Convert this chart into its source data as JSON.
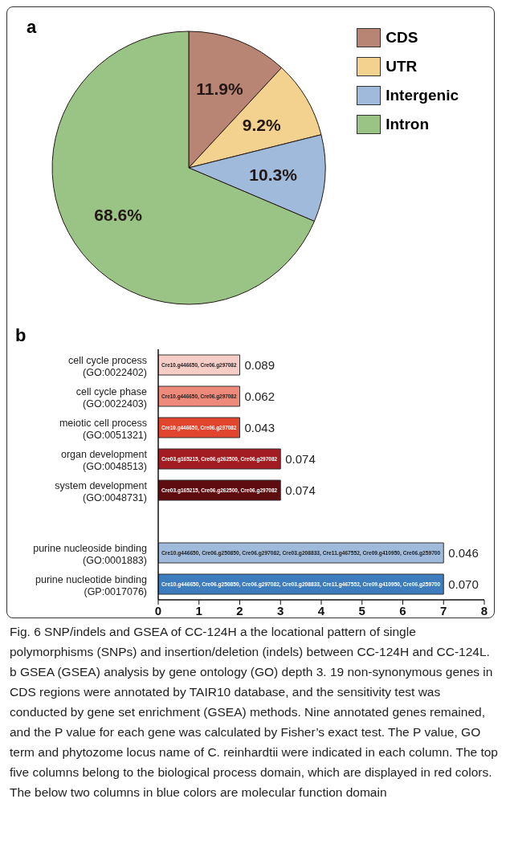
{
  "chart_data": [
    {
      "type": "pie",
      "title": "a",
      "categories": [
        "CDS",
        "UTR",
        "Intergenic",
        "Intron"
      ],
      "values": [
        11.9,
        9.2,
        10.3,
        68.6
      ],
      "colors": [
        "#b88474",
        "#f3d18f",
        "#9fbadb",
        "#9ac386"
      ],
      "value_labels": [
        "11.9%",
        "9.2%",
        "10.3%",
        "68.6%"
      ],
      "legend": "top right",
      "annotations": [
        "Fig. 6 SNP/indels and GSEA of CC-124H a the locational pattern of single polymorphisms (SNPs) and insertion/deletion (indels) between CC-124H and CC-124L. b GSEA (GSEA) analysis by gene ontology (GO) depth 3. 19 non-synonymous genes in CDS regions were annotated by TAIR10 database, and the sensitivity test was conducted by gene set enrichment (GSEA) methods. Nine annotated genes remained, and the P value for each gene was calculated by Fisher’s exact test. The P value, GO term and phytozome locus name of C. reinhardtii were indicated in each column. The top five columns belong to the biological process domain, which are displayed in red colors. The below two columns in blue colors are molecular function domain"
      ]
    },
    {
      "type": "bar",
      "title": "b",
      "orientation": "horizontal",
      "categories": [
        "cell cycle process\n(GO:0022402)",
        "cell cycle phase\n(GO:0022403)",
        "meiotic cell process\n(GO:0051321)",
        "organ development\n(GO:0048513)",
        "system development\n(GO:0048731)",
        null,
        "purine nucleoside binding\n(GO:0001883)",
        "purine nucleotide binding\n(GP:0017076)"
      ],
      "values": [
        2,
        2,
        2,
        3,
        3,
        null,
        7,
        7
      ],
      "colors": [
        "#f7cdc8",
        "#ed8a7a",
        "#e2452e",
        "#a31c22",
        "#5e0c10",
        "#ffffff",
        "#9fbadb",
        "#3d7cbd"
      ],
      "xlim": [
        0,
        8
      ],
      "xticks": [
        0,
        1,
        2,
        3,
        4,
        5,
        6,
        7,
        8
      ],
      "annotations": [
        "Cre10.g446650, Cre06.g297082",
        "Cre10.g446650, Cre06.g297082",
        "Cre10.g446650, Cre06.g297082",
        "Cre03.g165215, Cre06.g262500, Cre06.g297082",
        "Cre03.g165215, Cre06.g262500, Cre06.g297082",
        "Cre10.g446650, Cre06.g250850, Cre06.g297082, Cre03.g208833, Cre11.g467552, Cre09.g410950, Cre06.g259700",
        "Cre10.g446650, Cre06.g250850, Cre06.g297082, Cre03.g208833, Cre11.g467552, Cre09.g410950, Cre06.g259700",
        {
          "text": "0.089",
          "x": 2,
          "y": "cell cycle process\n(GO:0022402)"
        },
        {
          "text": "0.062",
          "x": 2,
          "y": "cell cycle phase\n(GO:0022403)"
        },
        {
          "text": "0.043",
          "x": 2,
          "y": "meiotic cell process\n(GO:0051321)"
        },
        {
          "text": "0.074",
          "x": 3,
          "y": "organ development\n(GO:0048513)"
        },
        {
          "text": "0.074",
          "x": 3,
          "y": "system development\n(GO:0048731)"
        },
        {
          "text": "0.046",
          "x": 7,
          "y": "purine nucleoside binding\n(GO:0001883)"
        },
        {
          "text": "0.070",
          "x": 7,
          "y": "purine nucleotide binding\n(GP:0017076)"
        }
      ]
    }
  ]
}
